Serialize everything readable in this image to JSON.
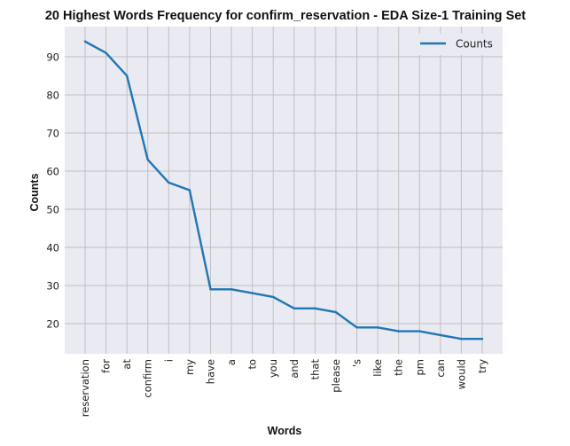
{
  "chart_data": {
    "type": "line",
    "title": "20 Highest Words Frequency for confirm_reservation - EDA Size-1 Training Set",
    "xlabel": "Words",
    "ylabel": "Counts",
    "categories": [
      "reservation",
      "for",
      "at",
      "confirm",
      "i",
      "my",
      "have",
      "a",
      "to",
      "you",
      "and",
      "that",
      "please",
      "'s",
      "like",
      "the",
      "pm",
      "can",
      "would",
      "try"
    ],
    "series": [
      {
        "name": "Counts",
        "values": [
          94,
          91,
          85,
          63,
          57,
          55,
          29,
          29,
          28,
          27,
          24,
          24,
          23,
          19,
          19,
          18,
          18,
          17,
          16,
          16
        ]
      }
    ],
    "ylim": [
      12.1,
      97.9
    ],
    "yticks": [
      20,
      30,
      40,
      50,
      60,
      70,
      80,
      90
    ],
    "grid": true,
    "legend_position": "top-right",
    "colors": {
      "line": "#1f77b4",
      "plot_background": "#eaeaf2",
      "grid": "#c0c0c0"
    }
  }
}
